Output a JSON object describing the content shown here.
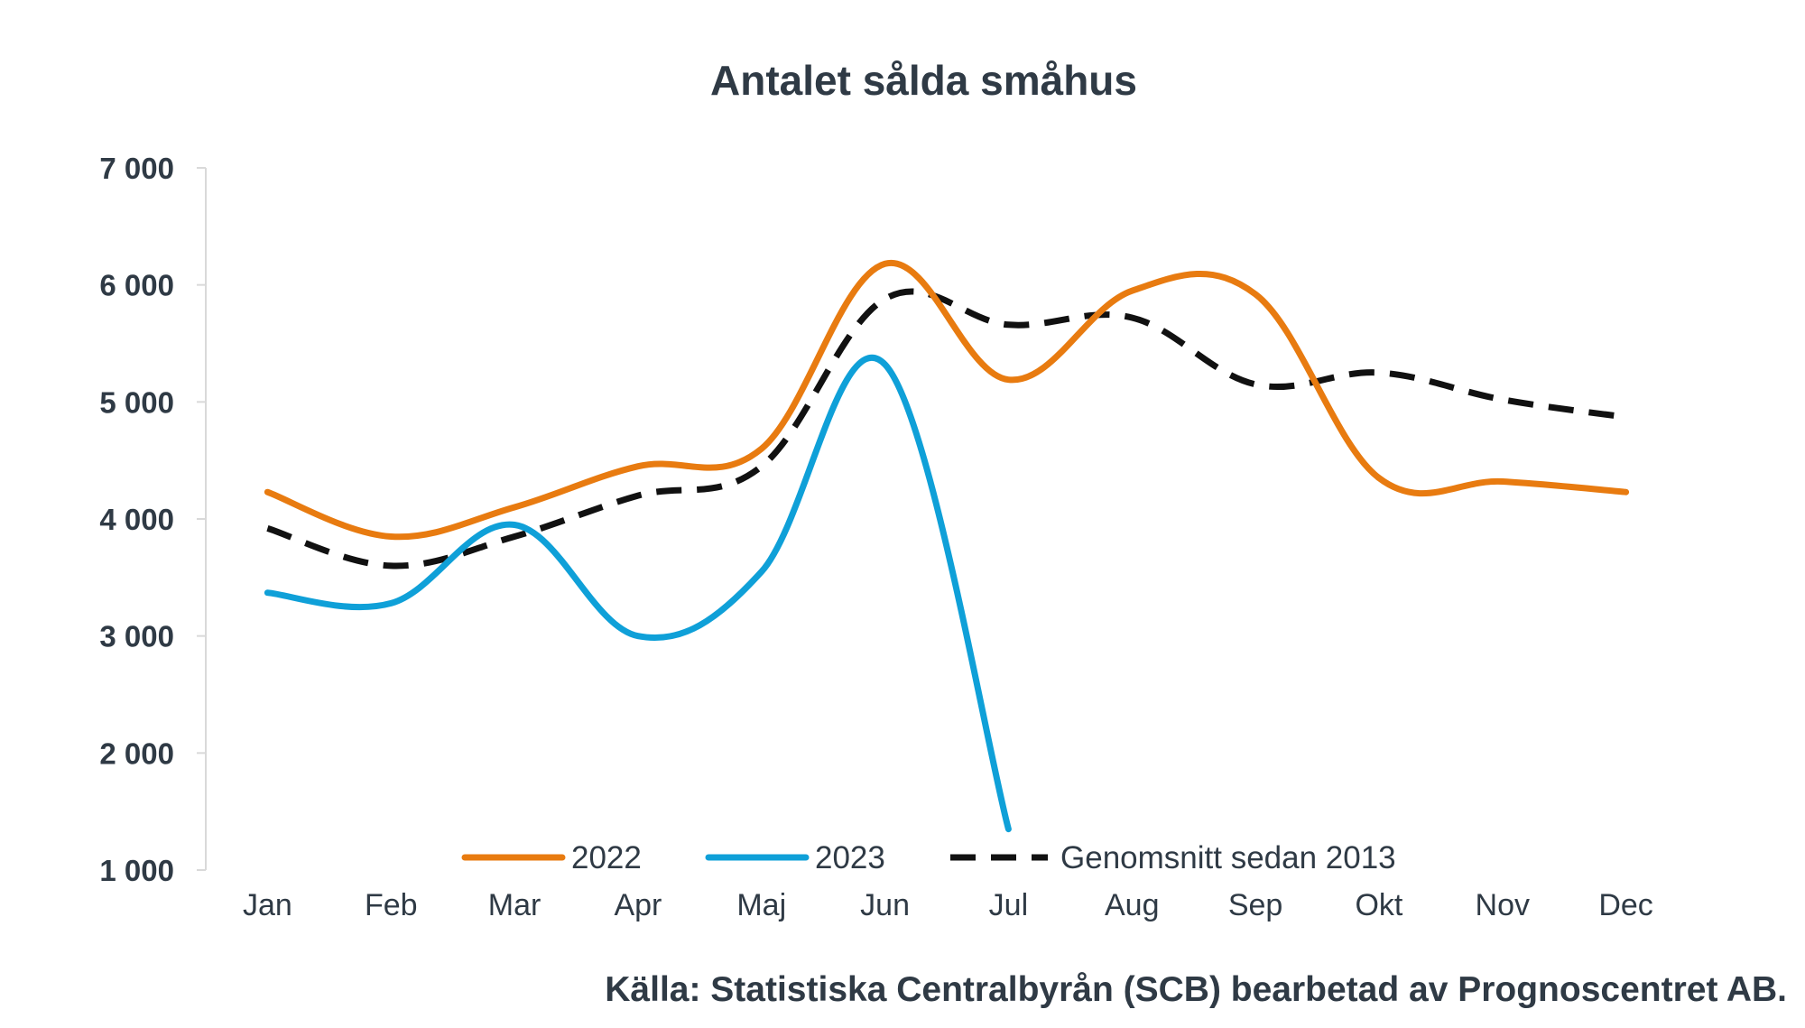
{
  "chart_data": {
    "type": "line",
    "title": "Antalet sålda småhus",
    "source": "Källa: Statistiska Centralbyrån (SCB) bearbetad av Prognoscentret AB.",
    "xlabel": "",
    "ylabel": "",
    "categories": [
      "Jan",
      "Feb",
      "Mar",
      "Apr",
      "Maj",
      "Jun",
      "Jul",
      "Aug",
      "Sep",
      "Okt",
      "Nov",
      "Dec"
    ],
    "ylim": [
      1000,
      7000
    ],
    "yticks": [
      1000,
      2000,
      3000,
      4000,
      5000,
      6000,
      7000
    ],
    "ytick_labels": [
      "1 000",
      "2 000",
      "3 000",
      "4 000",
      "5 000",
      "6 000",
      "7 000"
    ],
    "grid": false,
    "legend_position": "bottom",
    "series": [
      {
        "name": "2022",
        "color": "#e87b10",
        "dash": false,
        "values": [
          4230,
          3850,
          4100,
          4450,
          4600,
          6180,
          5190,
          5950,
          5920,
          4350,
          4320,
          4230
        ]
      },
      {
        "name": "2023",
        "color": "#0fa0d8",
        "dash": false,
        "values": [
          3370,
          3280,
          3950,
          3000,
          3550,
          5320,
          1350,
          null,
          null,
          null,
          null,
          null
        ]
      },
      {
        "name": "Genomsnitt sedan 2013",
        "color": "#111111",
        "dash": true,
        "values": [
          3920,
          3600,
          3850,
          4200,
          4450,
          5880,
          5660,
          5720,
          5150,
          5250,
          5020,
          4870
        ]
      }
    ]
  }
}
